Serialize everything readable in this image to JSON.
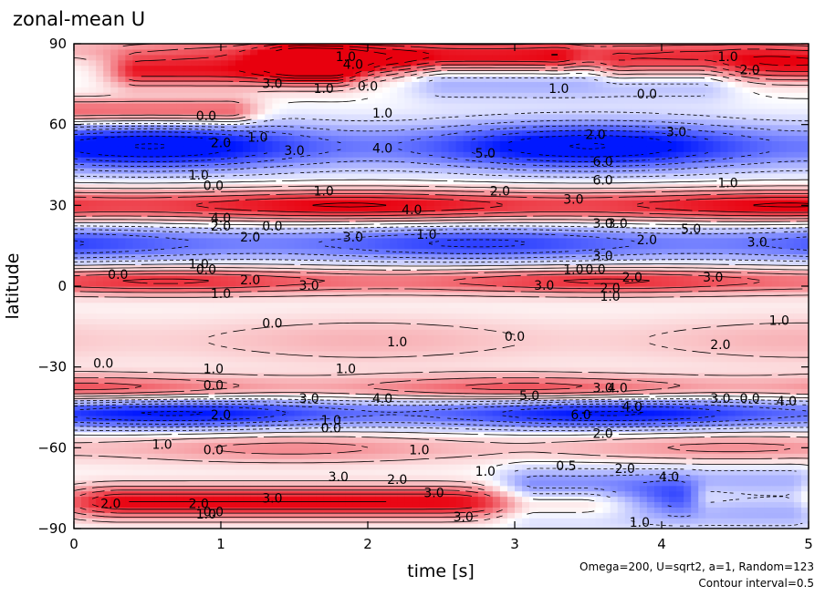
{
  "chart_data": {
    "type": "heatmap",
    "title": "zonal-mean U",
    "xlabel": "time [s]",
    "ylabel": "latitude",
    "xlim": [
      0,
      5
    ],
    "ylim": [
      -90,
      90
    ],
    "x_ticks": [
      0,
      1,
      2,
      3,
      4,
      5
    ],
    "y_ticks": [
      -90,
      -60,
      -30,
      0,
      30,
      60,
      90
    ],
    "x_tick_labels": [
      "0",
      "1",
      "2",
      "3",
      "4",
      "5"
    ],
    "y_tick_labels": [
      "−90",
      "−60",
      "−30",
      "0",
      "30",
      "60",
      "90"
    ],
    "contour_interval": 0.5,
    "colors": {
      "positive": "#e8000e",
      "negative": "#0018ff",
      "zero": "#ffffff"
    },
    "grid": false,
    "notes": [
      "Omega=200, U=sqrt2, a=1, Random=123",
      "Contour interval=0.5"
    ],
    "features": [
      {
        "t0": 0.0,
        "t1": 5.0,
        "lat": 88,
        "dlat": 5,
        "u": 2.0,
        "mod": 0.6
      },
      {
        "t0": 0.7,
        "t1": 1.5,
        "lat": 80,
        "dlat": 6,
        "u": 4.5,
        "mod": 0.0
      },
      {
        "t0": 1.8,
        "t1": 3.0,
        "lat": 84,
        "dlat": 6,
        "u": 5.0,
        "mod": 0.0
      },
      {
        "t0": 4.0,
        "t1": 5.0,
        "lat": 82,
        "dlat": 6,
        "u": 4.5,
        "mod": 0.0
      },
      {
        "t0": 2.8,
        "t1": 4.0,
        "lat": 78,
        "dlat": 8,
        "u": -2.5,
        "mod": 0.0
      },
      {
        "t0": 0.0,
        "t1": 0.8,
        "lat": 65,
        "dlat": 5,
        "u": 3.5,
        "mod": 0.0
      },
      {
        "t0": 0.0,
        "t1": 5.0,
        "lat": 52,
        "dlat": 9,
        "u": -4.5,
        "mod": 0.7
      },
      {
        "t0": 0.0,
        "t1": 5.0,
        "lat": 30,
        "dlat": 6,
        "u": 4.5,
        "mod": 0.3
      },
      {
        "t0": 0.0,
        "t1": 5.0,
        "lat": 16,
        "dlat": 7,
        "u": -3.5,
        "mod": 0.4
      },
      {
        "t0": 0.0,
        "t1": 5.0,
        "lat": 2,
        "dlat": 5,
        "u": 3.5,
        "mod": 0.4
      },
      {
        "t0": 0.0,
        "t1": 5.0,
        "lat": -20,
        "dlat": 10,
        "u": 1.2,
        "mod": 0.5
      },
      {
        "t0": 0.0,
        "t1": 5.0,
        "lat": -38,
        "dlat": 5,
        "u": 2.8,
        "mod": 0.6
      },
      {
        "t0": 0.0,
        "t1": 5.0,
        "lat": -47,
        "dlat": 6,
        "u": -4.2,
        "mod": 0.5
      },
      {
        "t0": 0.0,
        "t1": 5.0,
        "lat": -60,
        "dlat": 6,
        "u": 1.8,
        "mod": 0.6
      },
      {
        "t0": 0.6,
        "t1": 3.2,
        "lat": -80,
        "dlat": 6,
        "u": 5.0,
        "mod": 0.0
      },
      {
        "t0": 3.4,
        "t1": 4.6,
        "lat": -78,
        "dlat": 9,
        "u": -5.0,
        "mod": 0.0
      },
      {
        "t0": 4.6,
        "t1": 5.0,
        "lat": -78,
        "dlat": 6,
        "u": 4.0,
        "mod": 0.0
      }
    ],
    "contour_labels": [
      {
        "t": 1.85,
        "lat": 85,
        "text": "1.0"
      },
      {
        "t": 1.9,
        "lat": 82,
        "text": "4.0"
      },
      {
        "t": 1.35,
        "lat": 75,
        "text": "3.0"
      },
      {
        "t": 1.7,
        "lat": 73,
        "text": "1.0"
      },
      {
        "t": 2.0,
        "lat": 74,
        "text": "0.0"
      },
      {
        "t": 3.3,
        "lat": 73,
        "text": "1.0"
      },
      {
        "t": 3.9,
        "lat": 71,
        "text": "0.0"
      },
      {
        "t": 4.45,
        "lat": 85,
        "text": "1.0"
      },
      {
        "t": 4.6,
        "lat": 80,
        "text": "2.0"
      },
      {
        "t": 0.9,
        "lat": 63,
        "text": "0.0"
      },
      {
        "t": 2.1,
        "lat": 64,
        "text": "1.0"
      },
      {
        "t": 1.0,
        "lat": 53,
        "text": "2.0"
      },
      {
        "t": 1.25,
        "lat": 55,
        "text": "1.0"
      },
      {
        "t": 1.5,
        "lat": 50,
        "text": "3.0"
      },
      {
        "t": 2.1,
        "lat": 51,
        "text": "4.0"
      },
      {
        "t": 2.8,
        "lat": 49,
        "text": "5.0"
      },
      {
        "t": 3.55,
        "lat": 56,
        "text": "2.0"
      },
      {
        "t": 4.1,
        "lat": 57,
        "text": "3.0"
      },
      {
        "t": 3.6,
        "lat": 46,
        "text": "6.0"
      },
      {
        "t": 3.6,
        "lat": 39,
        "text": "6.0"
      },
      {
        "t": 0.85,
        "lat": 41,
        "text": "1.0"
      },
      {
        "t": 0.95,
        "lat": 37,
        "text": "0.0"
      },
      {
        "t": 1.7,
        "lat": 35,
        "text": "1.0"
      },
      {
        "t": 2.9,
        "lat": 35,
        "text": "2.0"
      },
      {
        "t": 4.45,
        "lat": 38,
        "text": "1.0"
      },
      {
        "t": 2.3,
        "lat": 28,
        "text": "4.0"
      },
      {
        "t": 3.4,
        "lat": 32,
        "text": "3.0"
      },
      {
        "t": 1.0,
        "lat": 25,
        "text": "4.0"
      },
      {
        "t": 1.0,
        "lat": 22,
        "text": "2.0"
      },
      {
        "t": 1.35,
        "lat": 22,
        "text": "0.0"
      },
      {
        "t": 3.6,
        "lat": 23,
        "text": "3.0"
      },
      {
        "t": 3.7,
        "lat": 23,
        "text": "3.0"
      },
      {
        "t": 4.2,
        "lat": 21,
        "text": "5.0"
      },
      {
        "t": 1.2,
        "lat": 18,
        "text": "2.0"
      },
      {
        "t": 1.9,
        "lat": 18,
        "text": "3.0"
      },
      {
        "t": 2.4,
        "lat": 19,
        "text": "1.0"
      },
      {
        "t": 3.9,
        "lat": 17,
        "text": "2.0"
      },
      {
        "t": 4.65,
        "lat": 16,
        "text": "3.0"
      },
      {
        "t": 3.6,
        "lat": 11,
        "text": "3.0"
      },
      {
        "t": 0.85,
        "lat": 8,
        "text": "1.0"
      },
      {
        "t": 0.3,
        "lat": 4,
        "text": "0.0"
      },
      {
        "t": 0.9,
        "lat": 6,
        "text": "0.0"
      },
      {
        "t": 3.4,
        "lat": 6,
        "text": "1.0"
      },
      {
        "t": 3.55,
        "lat": 6,
        "text": "0.0"
      },
      {
        "t": 1.2,
        "lat": 2,
        "text": "2.0"
      },
      {
        "t": 1.6,
        "lat": 0,
        "text": "3.0"
      },
      {
        "t": 3.2,
        "lat": 0,
        "text": "3.0"
      },
      {
        "t": 3.8,
        "lat": 3,
        "text": "2.0"
      },
      {
        "t": 4.35,
        "lat": 3,
        "text": "3.0"
      },
      {
        "t": 3.65,
        "lat": -1,
        "text": "2.0"
      },
      {
        "t": 3.65,
        "lat": -4,
        "text": "1.0"
      },
      {
        "t": 1.0,
        "lat": -3,
        "text": "1.0"
      },
      {
        "t": 1.35,
        "lat": -14,
        "text": "0.0"
      },
      {
        "t": 4.8,
        "lat": -13,
        "text": "1.0"
      },
      {
        "t": 2.2,
        "lat": -21,
        "text": "1.0"
      },
      {
        "t": 3.0,
        "lat": -19,
        "text": "0.0"
      },
      {
        "t": 4.4,
        "lat": -22,
        "text": "2.0"
      },
      {
        "t": 0.2,
        "lat": -29,
        "text": "0.0"
      },
      {
        "t": 0.95,
        "lat": -31,
        "text": "1.0"
      },
      {
        "t": 1.85,
        "lat": -31,
        "text": "1.0"
      },
      {
        "t": 0.95,
        "lat": -37,
        "text": "0.0"
      },
      {
        "t": 1.6,
        "lat": -42,
        "text": "3.0"
      },
      {
        "t": 2.1,
        "lat": -42,
        "text": "4.0"
      },
      {
        "t": 3.1,
        "lat": -41,
        "text": "5.0"
      },
      {
        "t": 3.6,
        "lat": -38,
        "text": "3.0"
      },
      {
        "t": 3.7,
        "lat": -38,
        "text": "4.0"
      },
      {
        "t": 4.4,
        "lat": -42,
        "text": "3.0"
      },
      {
        "t": 4.6,
        "lat": -42,
        "text": "0.0"
      },
      {
        "t": 4.85,
        "lat": -43,
        "text": "4.0"
      },
      {
        "t": 3.8,
        "lat": -45,
        "text": "4.0"
      },
      {
        "t": 3.45,
        "lat": -48,
        "text": "6.0"
      },
      {
        "t": 1.0,
        "lat": -48,
        "text": "2.0"
      },
      {
        "t": 1.75,
        "lat": -50,
        "text": "1.0"
      },
      {
        "t": 1.75,
        "lat": -53,
        "text": "0.0"
      },
      {
        "t": 3.6,
        "lat": -55,
        "text": "2.0"
      },
      {
        "t": 0.6,
        "lat": -59,
        "text": "1.0"
      },
      {
        "t": 0.95,
        "lat": -61,
        "text": "0.0"
      },
      {
        "t": 2.35,
        "lat": -61,
        "text": "1.0"
      },
      {
        "t": 2.8,
        "lat": -69,
        "text": "1.0"
      },
      {
        "t": 3.35,
        "lat": -67,
        "text": "0.5"
      },
      {
        "t": 3.75,
        "lat": -68,
        "text": "2.0"
      },
      {
        "t": 4.05,
        "lat": -71,
        "text": "4.0"
      },
      {
        "t": 1.8,
        "lat": -71,
        "text": "3.0"
      },
      {
        "t": 2.2,
        "lat": -72,
        "text": "2.0"
      },
      {
        "t": 1.35,
        "lat": -79,
        "text": "3.0"
      },
      {
        "t": 2.45,
        "lat": -77,
        "text": "3.0"
      },
      {
        "t": 0.85,
        "lat": -81,
        "text": "2.0"
      },
      {
        "t": 0.95,
        "lat": -84,
        "text": "0.0"
      },
      {
        "t": 0.25,
        "lat": -81,
        "text": "2.0"
      },
      {
        "t": 0.9,
        "lat": -85,
        "text": "1.0"
      },
      {
        "t": 2.65,
        "lat": -86,
        "text": "3.0"
      },
      {
        "t": 3.85,
        "lat": -88,
        "text": "1.0"
      }
    ]
  }
}
